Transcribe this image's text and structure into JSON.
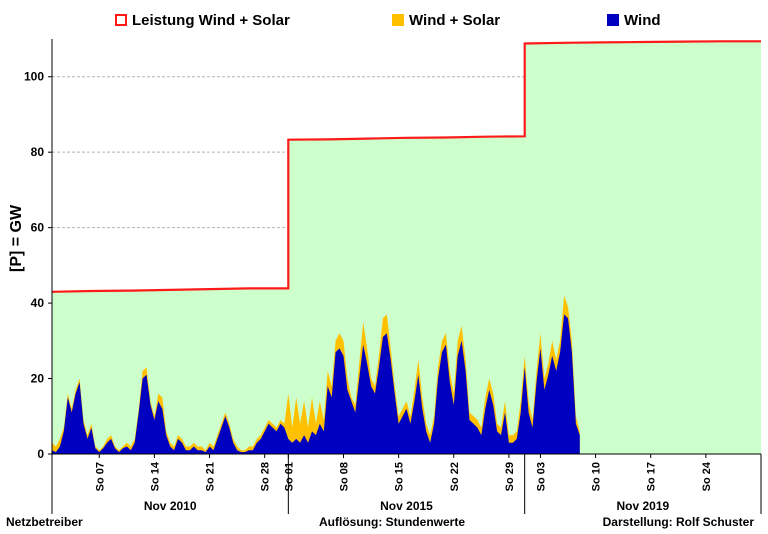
{
  "legend": [
    {
      "label": "Leistung Wind + Solar",
      "color": "#ff1a1a",
      "kind": "outline"
    },
    {
      "label": "Wind + Solar",
      "color": "#ffc000",
      "kind": "fill"
    },
    {
      "label": "Wind",
      "color": "#0000c0",
      "kind": "fill"
    }
  ],
  "ylabel": "[P]  =  GW",
  "footer": {
    "left": "Netzbetreiber",
    "center": "Auflösung:  Stundenwerte",
    "right": "Darstellung: Rolf Schuster"
  },
  "colors": {
    "capacity_area": "#ccffcc",
    "capacity_line": "#ff1a1a",
    "wind_solar": "#ffc000",
    "wind": "#0000c0",
    "grid": "#b3b3b3"
  },
  "chart_data": {
    "type": "area",
    "ylim": [
      0,
      110
    ],
    "yticks": [
      0,
      20,
      40,
      60,
      80,
      100
    ],
    "grid": true,
    "legend_position": "top",
    "x_unit": "day index (0 = Nov 01, 2010 … 90 = end of Nov 2019)",
    "panels": [
      {
        "label": "Nov 2010",
        "ticks": [
          {
            "x": 6,
            "label": "So 07"
          },
          {
            "x": 13,
            "label": "So 14"
          },
          {
            "x": 20,
            "label": "So 21"
          },
          {
            "x": 27,
            "label": "So 28"
          }
        ]
      },
      {
        "label": "Nov 2015",
        "ticks": [
          {
            "x": 30,
            "label": "So 01"
          },
          {
            "x": 37,
            "label": "So 08"
          },
          {
            "x": 44,
            "label": "So 15"
          },
          {
            "x": 51,
            "label": "So 22"
          },
          {
            "x": 58,
            "label": "So 29"
          }
        ]
      },
      {
        "label": "Nov 2019",
        "ticks": [
          {
            "x": 62,
            "label": "So 03"
          },
          {
            "x": 69,
            "label": "So 10"
          },
          {
            "x": 76,
            "label": "So 17"
          },
          {
            "x": 83,
            "label": "So 24"
          }
        ]
      }
    ],
    "series": [
      {
        "name": "Leistung Wind + Solar",
        "points": [
          [
            0,
            43
          ],
          [
            5,
            43.2
          ],
          [
            10,
            43.3
          ],
          [
            15,
            43.5
          ],
          [
            20,
            43.7
          ],
          [
            25,
            43.9
          ],
          [
            30,
            43.9
          ],
          [
            30,
            83.3
          ],
          [
            35,
            83.4
          ],
          [
            40,
            83.6
          ],
          [
            45,
            83.8
          ],
          [
            50,
            83.9
          ],
          [
            55,
            84.1
          ],
          [
            60,
            84.2
          ],
          [
            60,
            108.8
          ],
          [
            65,
            109
          ],
          [
            70,
            109.1
          ],
          [
            75,
            109.2
          ],
          [
            80,
            109.3
          ],
          [
            85,
            109.4
          ],
          [
            90,
            109.4
          ]
        ]
      },
      {
        "name": "Wind + Solar",
        "points": [
          [
            0,
            3
          ],
          [
            0.5,
            2
          ],
          [
            1,
            4
          ],
          [
            1.5,
            7
          ],
          [
            2,
            16
          ],
          [
            2.5,
            12
          ],
          [
            3,
            17
          ],
          [
            3.5,
            20
          ],
          [
            4,
            9
          ],
          [
            4.5,
            5
          ],
          [
            5,
            8
          ],
          [
            5.5,
            2
          ],
          [
            6,
            1
          ],
          [
            6.5,
            2
          ],
          [
            7,
            4
          ],
          [
            7.5,
            5
          ],
          [
            8,
            2
          ],
          [
            8.5,
            1
          ],
          [
            9,
            2
          ],
          [
            9.5,
            3
          ],
          [
            10,
            2
          ],
          [
            10.5,
            4
          ],
          [
            11,
            12
          ],
          [
            11.5,
            22
          ],
          [
            12,
            23
          ],
          [
            12.5,
            14
          ],
          [
            13,
            10
          ],
          [
            13.5,
            16
          ],
          [
            14,
            15
          ],
          [
            14.5,
            6
          ],
          [
            15,
            3
          ],
          [
            15.5,
            2
          ],
          [
            16,
            5
          ],
          [
            16.5,
            4
          ],
          [
            17,
            2
          ],
          [
            17.5,
            2
          ],
          [
            18,
            3
          ],
          [
            18.5,
            2
          ],
          [
            19,
            2
          ],
          [
            19.5,
            1
          ],
          [
            20,
            3
          ],
          [
            20.5,
            2
          ],
          [
            21,
            5
          ],
          [
            21.5,
            8
          ],
          [
            22,
            11
          ],
          [
            22.5,
            8
          ],
          [
            23,
            4
          ],
          [
            23.5,
            2
          ],
          [
            24,
            1
          ],
          [
            24.5,
            1
          ],
          [
            25,
            2
          ],
          [
            25.5,
            2
          ],
          [
            26,
            4
          ],
          [
            26.5,
            5
          ],
          [
            27,
            7
          ],
          [
            27.5,
            9
          ],
          [
            28,
            8
          ],
          [
            28.5,
            7
          ],
          [
            29,
            9
          ],
          [
            29.5,
            8
          ],
          [
            30,
            16
          ],
          [
            30.5,
            7
          ],
          [
            31,
            15
          ],
          [
            31.5,
            8
          ],
          [
            32,
            14
          ],
          [
            32.5,
            7
          ],
          [
            33,
            15
          ],
          [
            33.5,
            8
          ],
          [
            34,
            14
          ],
          [
            34.5,
            9
          ],
          [
            35,
            22
          ],
          [
            35.5,
            18
          ],
          [
            36,
            30
          ],
          [
            36.5,
            32
          ],
          [
            37,
            30
          ],
          [
            37.5,
            20
          ],
          [
            38,
            15
          ],
          [
            38.5,
            13
          ],
          [
            39,
            24
          ],
          [
            39.5,
            35
          ],
          [
            40,
            28
          ],
          [
            40.5,
            20
          ],
          [
            41,
            18
          ],
          [
            41.5,
            26
          ],
          [
            42,
            36
          ],
          [
            42.5,
            37
          ],
          [
            43,
            28
          ],
          [
            43.5,
            18
          ],
          [
            44,
            10
          ],
          [
            44.5,
            12
          ],
          [
            45,
            14
          ],
          [
            45.5,
            10
          ],
          [
            46,
            17
          ],
          [
            46.5,
            25
          ],
          [
            47,
            15
          ],
          [
            47.5,
            8
          ],
          [
            48,
            5
          ],
          [
            48.5,
            10
          ],
          [
            49,
            23
          ],
          [
            49.5,
            30
          ],
          [
            50,
            32
          ],
          [
            50.5,
            22
          ],
          [
            51,
            16
          ],
          [
            51.5,
            30
          ],
          [
            52,
            34
          ],
          [
            52.5,
            25
          ],
          [
            53,
            11
          ],
          [
            53.5,
            10
          ],
          [
            54,
            9
          ],
          [
            54.5,
            7
          ],
          [
            55,
            15
          ],
          [
            55.5,
            20
          ],
          [
            56,
            16
          ],
          [
            56.5,
            8
          ],
          [
            57,
            7
          ],
          [
            57.5,
            14
          ],
          [
            58,
            5
          ],
          [
            58.5,
            5
          ],
          [
            59,
            6
          ],
          [
            59.5,
            14
          ],
          [
            60,
            26
          ],
          [
            60.5,
            14
          ],
          [
            61,
            9
          ],
          [
            61.5,
            22
          ],
          [
            62,
            32
          ],
          [
            62.5,
            20
          ],
          [
            63,
            24
          ],
          [
            63.5,
            30
          ],
          [
            64,
            25
          ],
          [
            64.5,
            30
          ],
          [
            65,
            42
          ],
          [
            65.5,
            39
          ],
          [
            66,
            30
          ],
          [
            66.5,
            10
          ],
          [
            67,
            6
          ]
        ]
      },
      {
        "name": "Wind",
        "points": [
          [
            0,
            1
          ],
          [
            0.5,
            0.5
          ],
          [
            1,
            2
          ],
          [
            1.5,
            6
          ],
          [
            2,
            15
          ],
          [
            2.5,
            11
          ],
          [
            3,
            16
          ],
          [
            3.5,
            19
          ],
          [
            4,
            8
          ],
          [
            4.5,
            4
          ],
          [
            5,
            7
          ],
          [
            5.5,
            1.5
          ],
          [
            6,
            0.5
          ],
          [
            6.5,
            1.5
          ],
          [
            7,
            3
          ],
          [
            7.5,
            4
          ],
          [
            8,
            1.5
          ],
          [
            8.5,
            0.5
          ],
          [
            9,
            1.5
          ],
          [
            9.5,
            2
          ],
          [
            10,
            1
          ],
          [
            10.5,
            3
          ],
          [
            11,
            11
          ],
          [
            11.5,
            20
          ],
          [
            12,
            21
          ],
          [
            12.5,
            13
          ],
          [
            13,
            9
          ],
          [
            13.5,
            14
          ],
          [
            14,
            12
          ],
          [
            14.5,
            5
          ],
          [
            15,
            2
          ],
          [
            15.5,
            1
          ],
          [
            16,
            4
          ],
          [
            16.5,
            3
          ],
          [
            17,
            1
          ],
          [
            17.5,
            1
          ],
          [
            18,
            2
          ],
          [
            18.5,
            1
          ],
          [
            19,
            1
          ],
          [
            19.5,
            0.5
          ],
          [
            20,
            2
          ],
          [
            20.5,
            1
          ],
          [
            21,
            4
          ],
          [
            21.5,
            7
          ],
          [
            22,
            10
          ],
          [
            22.5,
            7
          ],
          [
            23,
            3
          ],
          [
            23.5,
            1
          ],
          [
            24,
            0.5
          ],
          [
            24.5,
            0.5
          ],
          [
            25,
            1
          ],
          [
            25.5,
            1
          ],
          [
            26,
            3
          ],
          [
            26.5,
            4
          ],
          [
            27,
            6
          ],
          [
            27.5,
            8
          ],
          [
            28,
            7
          ],
          [
            28.5,
            6
          ],
          [
            29,
            8
          ],
          [
            29.5,
            7
          ],
          [
            30,
            4
          ],
          [
            30.5,
            3
          ],
          [
            31,
            4
          ],
          [
            31.5,
            3
          ],
          [
            32,
            5
          ],
          [
            32.5,
            3
          ],
          [
            33,
            6
          ],
          [
            33.5,
            5
          ],
          [
            34,
            8
          ],
          [
            34.5,
            6
          ],
          [
            35,
            18
          ],
          [
            35.5,
            15
          ],
          [
            36,
            27
          ],
          [
            36.5,
            28
          ],
          [
            37,
            26
          ],
          [
            37.5,
            17
          ],
          [
            38,
            14
          ],
          [
            38.5,
            11
          ],
          [
            39,
            20
          ],
          [
            39.5,
            29
          ],
          [
            40,
            24
          ],
          [
            40.5,
            18
          ],
          [
            41,
            16
          ],
          [
            41.5,
            23
          ],
          [
            42,
            31
          ],
          [
            42.5,
            32
          ],
          [
            43,
            25
          ],
          [
            43.5,
            16
          ],
          [
            44,
            8
          ],
          [
            44.5,
            10
          ],
          [
            45,
            12
          ],
          [
            45.5,
            8
          ],
          [
            46,
            14
          ],
          [
            46.5,
            21
          ],
          [
            47,
            12
          ],
          [
            47.5,
            6
          ],
          [
            48,
            3
          ],
          [
            48.5,
            8
          ],
          [
            49,
            20
          ],
          [
            49.5,
            27
          ],
          [
            50,
            29
          ],
          [
            50.5,
            19
          ],
          [
            51,
            13
          ],
          [
            51.5,
            26
          ],
          [
            52,
            30
          ],
          [
            52.5,
            22
          ],
          [
            53,
            9
          ],
          [
            53.5,
            8
          ],
          [
            54,
            7
          ],
          [
            54.5,
            5
          ],
          [
            55,
            12
          ],
          [
            55.5,
            17
          ],
          [
            56,
            13
          ],
          [
            56.5,
            6
          ],
          [
            57,
            5
          ],
          [
            57.5,
            11
          ],
          [
            58,
            3
          ],
          [
            58.5,
            3
          ],
          [
            59,
            4
          ],
          [
            59.5,
            11
          ],
          [
            60,
            23
          ],
          [
            60.5,
            11
          ],
          [
            61,
            7
          ],
          [
            61.5,
            19
          ],
          [
            62,
            28
          ],
          [
            62.5,
            17
          ],
          [
            63,
            21
          ],
          [
            63.5,
            26
          ],
          [
            64,
            22
          ],
          [
            64.5,
            27
          ],
          [
            65,
            37
          ],
          [
            65.5,
            36
          ],
          [
            66,
            27
          ],
          [
            66.5,
            8
          ],
          [
            67,
            5
          ]
        ]
      }
    ]
  }
}
